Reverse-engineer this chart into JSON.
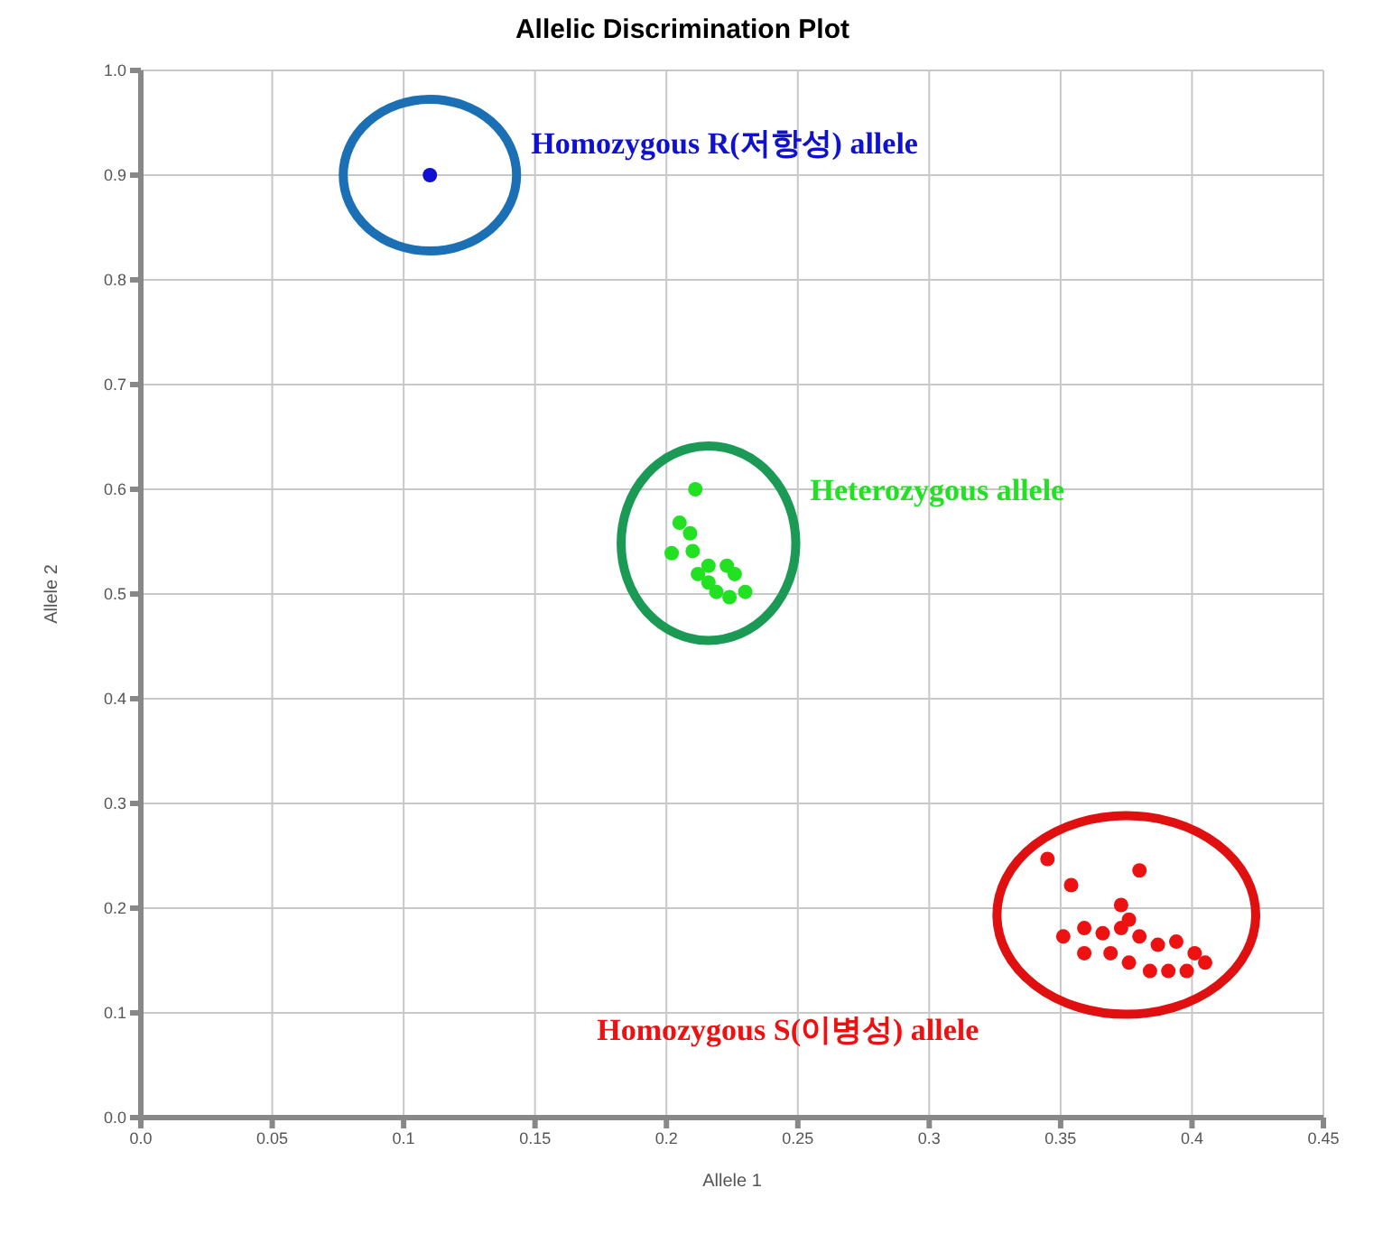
{
  "chart_data": {
    "type": "scatter",
    "title": "Allelic Discrimination Plot",
    "xlabel": "Allele 1",
    "ylabel": "Allele 2",
    "xlim": [
      0,
      0.45
    ],
    "xticks": [
      {
        "value": 0,
        "label": "0.0"
      },
      0.05,
      0.1,
      0.15,
      0.2,
      0.25,
      0.3,
      0.35,
      0.4,
      0.45
    ],
    "ylim": [
      0,
      1
    ],
    "yticks": [
      {
        "value": 0,
        "label": "0.0"
      },
      0.1,
      0.2,
      0.3,
      0.4,
      0.5,
      0.6,
      0.7,
      0.8,
      0.9,
      {
        "value": 1,
        "label": "1.0"
      }
    ],
    "grid": true,
    "marker": "circle",
    "series": [
      {
        "name": "Homozygous R(저항성) allele",
        "color": "#1010d0",
        "x": [
          0.11
        ],
        "values": [
          0.9
        ]
      },
      {
        "name": "Heterozygous allele",
        "color": "#22e022",
        "x": [
          0.211,
          0.205,
          0.209,
          0.202,
          0.21,
          0.216,
          0.223,
          0.226,
          0.219,
          0.224,
          0.23,
          0.216,
          0.212
        ],
        "values": [
          0.6,
          0.568,
          0.558,
          0.539,
          0.541,
          0.527,
          0.527,
          0.519,
          0.502,
          0.497,
          0.502,
          0.511,
          0.519
        ]
      },
      {
        "name": "Homozygous S(이병성) allele",
        "color": "#ee1111",
        "x": [
          0.345,
          0.354,
          0.38,
          0.373,
          0.351,
          0.359,
          0.366,
          0.373,
          0.38,
          0.387,
          0.394,
          0.401,
          0.369,
          0.376,
          0.384,
          0.391,
          0.398,
          0.405,
          0.359,
          0.376
        ],
        "values": [
          0.247,
          0.222,
          0.236,
          0.203,
          0.173,
          0.181,
          0.176,
          0.181,
          0.173,
          0.165,
          0.168,
          0.157,
          0.157,
          0.148,
          0.14,
          0.14,
          0.14,
          0.148,
          0.157,
          0.189
        ]
      }
    ]
  }
}
